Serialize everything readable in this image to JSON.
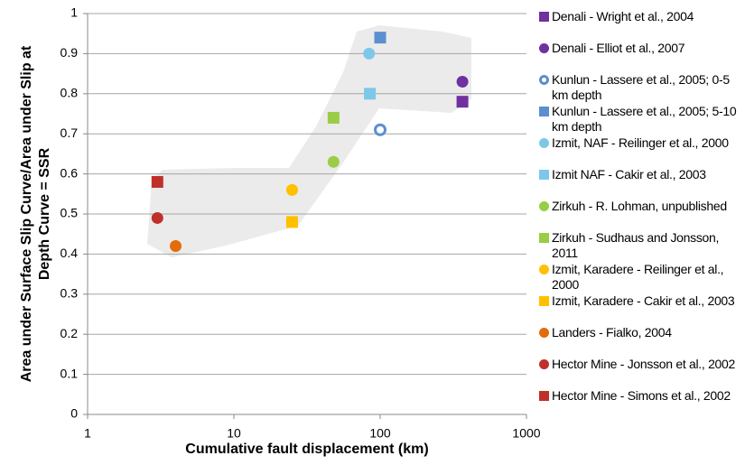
{
  "chart_data": {
    "type": "scatter",
    "xlabel": "Cumulative fault displacement (km)",
    "ylabel": [
      "Area under Surface Slip Curve/Area under Slip at",
      "Depth Curve = SSR"
    ],
    "xlim": [
      1,
      1000
    ],
    "xticks": [
      1,
      10,
      100,
      1000
    ],
    "xscale": "log",
    "ylim": [
      0,
      1
    ],
    "yticks": [
      0,
      0.1,
      0.2,
      0.3,
      0.4,
      0.5,
      0.6,
      0.7,
      0.8,
      0.9,
      1
    ],
    "grid": true,
    "legend": "right",
    "series": [
      {
        "name": "Denali - Wright et al., 2004",
        "color": "#7030a0",
        "marker": "square",
        "x": [
          365
        ],
        "values": [
          0.78
        ]
      },
      {
        "name": "Denali - Elliot et al., 2007",
        "color": "#7030a0",
        "marker": "circle",
        "x": [
          365
        ],
        "values": [
          0.83
        ]
      },
      {
        "name": "Kunlun - Lassere et al., 2005; 0-5 km depth",
        "color": "#5b8fd0",
        "marker": "open-circle",
        "x": [
          100
        ],
        "values": [
          0.71
        ]
      },
      {
        "name": "Kunlun - Lassere et al., 2005; 5-10 km depth",
        "color": "#5b8fd0",
        "marker": "square",
        "x": [
          100
        ],
        "values": [
          0.94
        ]
      },
      {
        "name": "Izmit, NAF - Reilinger et al., 2000",
        "color": "#7dc8ea",
        "marker": "circle",
        "x": [
          84
        ],
        "values": [
          0.9
        ]
      },
      {
        "name": "Izmit NAF - Cakir et al., 2003",
        "color": "#7dc8ea",
        "marker": "square",
        "x": [
          85
        ],
        "values": [
          0.8
        ]
      },
      {
        "name": "Zirkuh - R. Lohman, unpublished",
        "color": "#9acd45",
        "marker": "circle",
        "x": [
          48
        ],
        "values": [
          0.63
        ]
      },
      {
        "name": "Zirkuh - Sudhaus and Jonsson, 2011",
        "color": "#9acd45",
        "marker": "square",
        "x": [
          48
        ],
        "values": [
          0.74
        ]
      },
      {
        "name": "Izmit, Karadere - Reilinger et al., 2000",
        "color": "#ffc000",
        "marker": "circle",
        "x": [
          25
        ],
        "values": [
          0.56
        ]
      },
      {
        "name": "Izmit, Karadere - Cakir et al., 2003",
        "color": "#ffc000",
        "marker": "square",
        "x": [
          25
        ],
        "values": [
          0.48
        ]
      },
      {
        "name": "Landers - Fialko, 2004",
        "color": "#e36c0a",
        "marker": "circle",
        "x": [
          4
        ],
        "values": [
          0.42
        ]
      },
      {
        "name": "Hector Mine - Jonsson et al., 2002",
        "color": "#c0302b",
        "marker": "circle",
        "x": [
          3
        ],
        "values": [
          0.49
        ]
      },
      {
        "name": "Hector Mine - Simons et al., 2002",
        "color": "#c0302b",
        "marker": "square",
        "x": [
          3
        ],
        "values": [
          0.58
        ]
      }
    ]
  }
}
